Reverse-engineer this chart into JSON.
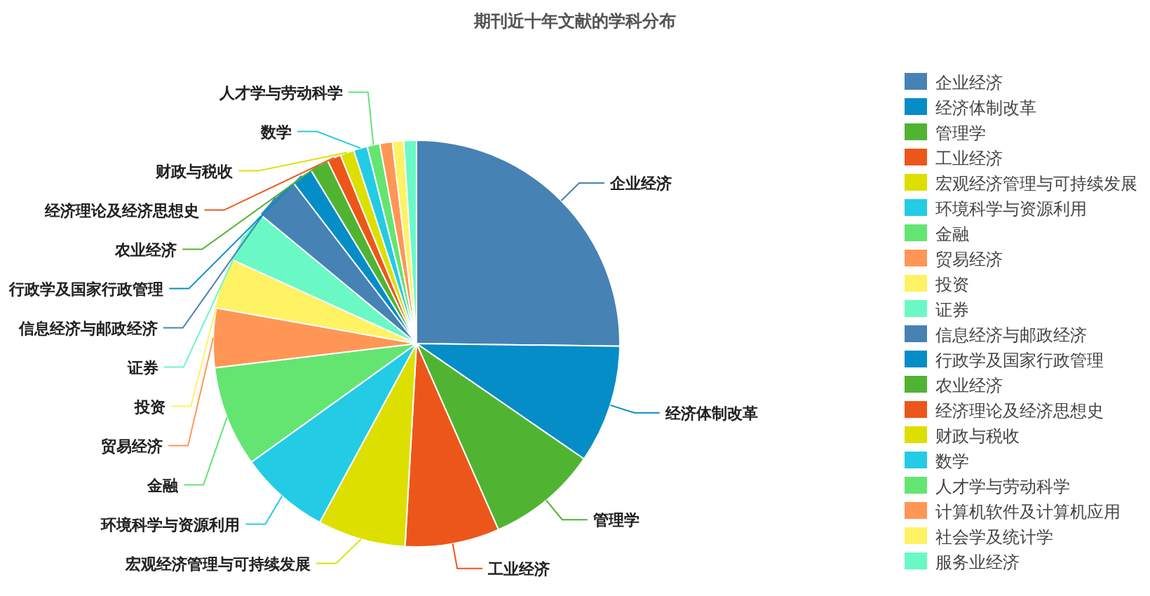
{
  "chart_data": {
    "type": "pie",
    "title": "期刊近十年文献的学科分布",
    "categories": [
      "企业经济",
      "经济体制改革",
      "管理学",
      "工业经济",
      "宏观经济管理与可持续发展",
      "环境科学与资源利用",
      "金融",
      "贸易经济",
      "投资",
      "证券",
      "信息经济与邮政经济",
      "行政学及国家行政管理",
      "农业经济",
      "经济理论及经济思想史",
      "财政与税收",
      "数学",
      "人才学与劳动科学",
      "计算机软件及计算机应用",
      "社会学及统计学",
      "服务业经济"
    ],
    "values": [
      25.2,
      9.4,
      8.8,
      7.5,
      7.0,
      7.2,
      8.0,
      4.7,
      4.0,
      4.2,
      3.6,
      1.7,
      1.5,
      1.1,
      1.1,
      1.1,
      1.0,
      1.0,
      0.9,
      1.0
    ],
    "colors": [
      "#4682b4",
      "#058dc7",
      "#50b432",
      "#ed561b",
      "#dddf00",
      "#24cbe5",
      "#64e572",
      "#ff9655",
      "#fff263",
      "#6af9c4",
      "#4682b4",
      "#058dc7",
      "#50b432",
      "#ed561b",
      "#dddf00",
      "#24cbe5",
      "#64e572",
      "#ff9655",
      "#fff263",
      "#6af9c4"
    ],
    "legend": "right"
  }
}
